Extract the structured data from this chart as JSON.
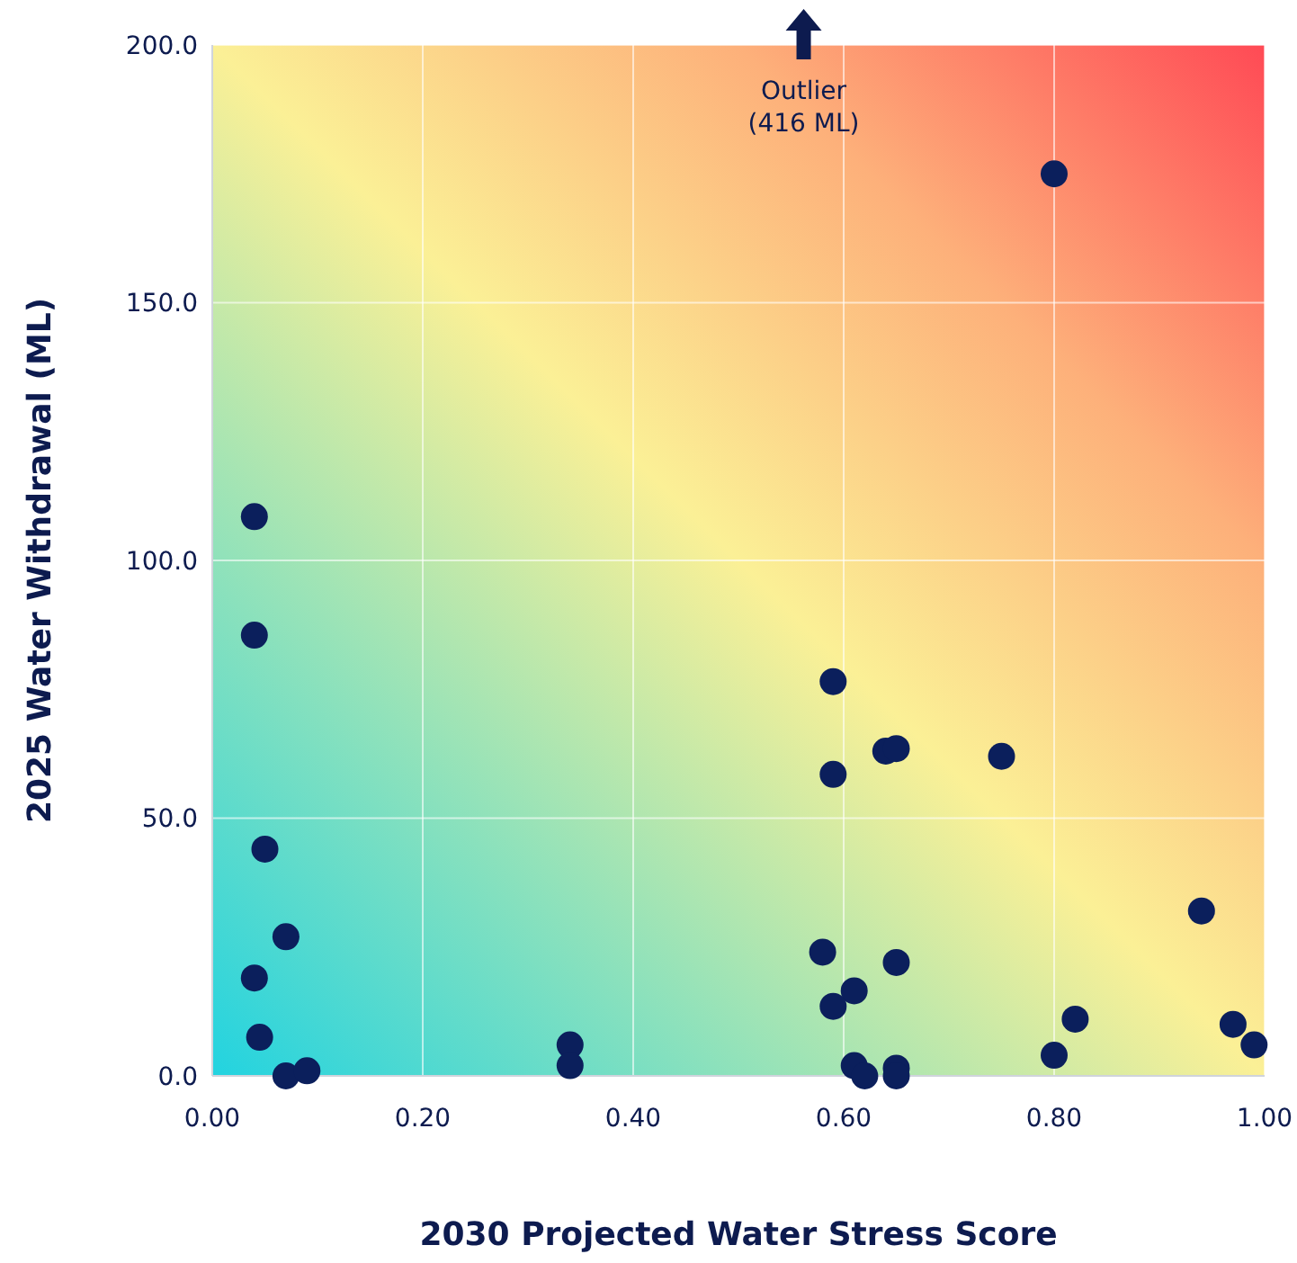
{
  "chart_data": {
    "type": "scatter",
    "xlabel": "2030 Projected Water Stress Score",
    "ylabel": "2025 Water Withdrawal (ML)",
    "x": [
      0.04,
      0.04,
      0.05,
      0.07,
      0.04,
      0.045,
      0.07,
      0.09,
      0.34,
      0.34,
      0.59,
      0.64,
      0.65,
      0.75,
      0.59,
      0.58,
      0.65,
      0.61,
      0.59,
      0.61,
      0.62,
      0.65,
      0.65,
      0.8,
      0.94,
      0.82,
      0.8,
      0.97,
      0.99
    ],
    "series": [
      {
        "color": "#0b1f5c",
        "values": [
          108.5,
          85.5,
          44,
          27,
          19,
          7.5,
          0,
          1,
          6,
          2,
          76.5,
          63,
          63.5,
          62,
          58.5,
          24,
          22,
          16.5,
          13.5,
          2,
          0,
          1.5,
          0,
          175,
          32,
          11,
          4,
          10,
          6
        ]
      }
    ],
    "xlim": [
      0,
      1
    ],
    "ylim": [
      0,
      200
    ],
    "xticks": [
      {
        "value": 0,
        "label": "0.00"
      },
      {
        "value": 0.2,
        "label": "0.20"
      },
      {
        "value": 0.4,
        "label": "0.40"
      },
      {
        "value": 0.6,
        "label": "0.60"
      },
      {
        "value": 0.8,
        "label": "0.80"
      },
      {
        "value": 1,
        "label": "1.00"
      }
    ],
    "yticks": [
      {
        "value": 0,
        "label": "0.0"
      },
      {
        "value": 50,
        "label": "50.0"
      },
      {
        "value": 100,
        "label": "100.0"
      },
      {
        "value": 150,
        "label": "150.0"
      },
      {
        "value": 200,
        "label": "200.0"
      }
    ],
    "grid": true,
    "marker": "circle",
    "annotations": [
      "Outlier\n(416 ML)"
    ]
  }
}
